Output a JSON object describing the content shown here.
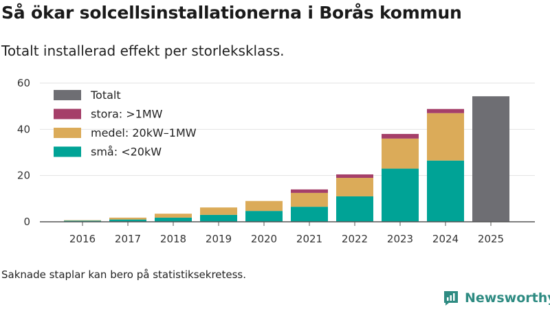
{
  "header": {
    "title": "Så ökar solcellsinstallationerna i Borås kommun",
    "subtitle": "Totalt installerad effekt per storleksklass."
  },
  "footer": {
    "note": "Saknade staplar kan bero på statistiksekretess.",
    "brand": "Newsworthy"
  },
  "colors": {
    "sma": "#00a396",
    "medel": "#dbab59",
    "stora": "#a53f69",
    "totalt": "#6e6e73",
    "brand": "#2e8b82"
  },
  "chart_data": {
    "type": "bar",
    "stacked": true,
    "title": "Så ökar solcellsinstallationerna i Borås kommun",
    "subtitle": "Totalt installerad effekt per storleksklass.",
    "xlabel": "",
    "ylabel": "",
    "ylim": [
      0,
      60
    ],
    "yticks": [
      0,
      20,
      40,
      60
    ],
    "grid": true,
    "legend_position": "top-left",
    "categories": [
      "2016",
      "2017",
      "2018",
      "2019",
      "2020",
      "2021",
      "2022",
      "2023",
      "2024",
      "2025"
    ],
    "series": [
      {
        "key": "sma",
        "name": "små: <20kW",
        "values": [
          0.5,
          1.0,
          1.8,
          3.0,
          4.7,
          6.5,
          11.0,
          23.0,
          26.5,
          null
        ]
      },
      {
        "key": "medel",
        "name": "medel: 20kW–1MW",
        "values": [
          0.2,
          0.8,
          1.7,
          3.2,
          4.3,
          6.0,
          8.0,
          13.0,
          20.5,
          null
        ]
      },
      {
        "key": "stora",
        "name": "stora: >1MW",
        "values": [
          0,
          0,
          0,
          0,
          0,
          1.5,
          1.5,
          2.0,
          1.8,
          null
        ]
      },
      {
        "key": "totalt",
        "name": "Totalt",
        "values": [
          null,
          null,
          null,
          null,
          null,
          null,
          null,
          null,
          null,
          54.3
        ]
      }
    ],
    "legend_order": [
      "totalt",
      "stora",
      "medel",
      "sma"
    ]
  }
}
